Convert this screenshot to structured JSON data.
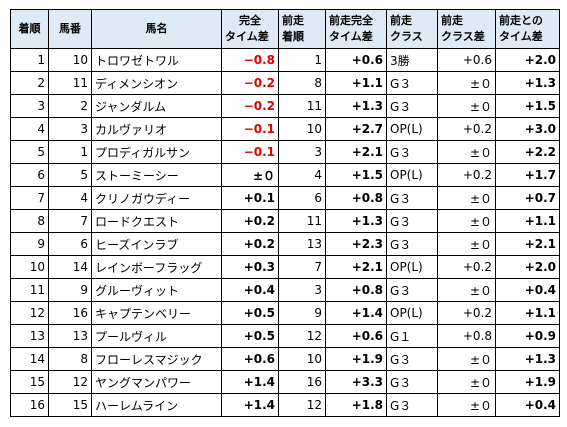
{
  "headers": {
    "rank": [
      "着順"
    ],
    "num": [
      "馬番"
    ],
    "name": [
      "馬名"
    ],
    "full_time_diff": [
      "完全",
      "タイム差"
    ],
    "prev_rank": [
      "前走",
      "着順"
    ],
    "prev_full_time_diff": [
      "前走完全",
      "タイム差"
    ],
    "prev_class": [
      "前走",
      "クラス"
    ],
    "class_diff": [
      "前走",
      "クラス差"
    ],
    "time_diff_vs_prev": [
      "前走との",
      "タイム差"
    ]
  },
  "rows": [
    {
      "rank": "1",
      "num": "10",
      "name": "トロワゼトワル",
      "full": "−0.8",
      "full_neg": true,
      "prev_rank": "1",
      "prev_full": "+0.6",
      "prev_class": "3勝",
      "class_diff": "+0.6",
      "vs_prev": "+2.0"
    },
    {
      "rank": "2",
      "num": "11",
      "name": "ディメンシオン",
      "full": "−0.2",
      "full_neg": true,
      "prev_rank": "8",
      "prev_full": "+1.1",
      "prev_class": "G３",
      "class_diff": "±０",
      "vs_prev": "+1.3"
    },
    {
      "rank": "3",
      "num": "2",
      "name": "ジャンダルム",
      "full": "−0.2",
      "full_neg": true,
      "prev_rank": "11",
      "prev_full": "+1.3",
      "prev_class": "G３",
      "class_diff": "±０",
      "vs_prev": "+1.5"
    },
    {
      "rank": "4",
      "num": "3",
      "name": "カルヴァリオ",
      "full": "−0.1",
      "full_neg": true,
      "prev_rank": "10",
      "prev_full": "+2.7",
      "prev_class": "OP(L)",
      "class_diff": "+0.2",
      "vs_prev": "+3.0"
    },
    {
      "rank": "5",
      "num": "1",
      "name": "プロディガルサン",
      "full": "−0.1",
      "full_neg": true,
      "prev_rank": "3",
      "prev_full": "+2.1",
      "prev_class": "G３",
      "class_diff": "±０",
      "vs_prev": "+2.2"
    },
    {
      "rank": "6",
      "num": "5",
      "name": "ストーミーシー",
      "full": "±０",
      "full_neg": false,
      "prev_rank": "4",
      "prev_full": "+1.5",
      "prev_class": "OP(L)",
      "class_diff": "+0.2",
      "vs_prev": "+1.7"
    },
    {
      "rank": "7",
      "num": "4",
      "name": "クリノガウディー",
      "full": "+0.1",
      "full_neg": false,
      "prev_rank": "6",
      "prev_full": "+0.8",
      "prev_class": "G３",
      "class_diff": "±０",
      "vs_prev": "+0.7"
    },
    {
      "rank": "8",
      "num": "7",
      "name": "ロードクエスト",
      "full": "+0.2",
      "full_neg": false,
      "prev_rank": "11",
      "prev_full": "+1.3",
      "prev_class": "G３",
      "class_diff": "±０",
      "vs_prev": "+1.1"
    },
    {
      "rank": "9",
      "num": "6",
      "name": "ヒーズインラブ",
      "full": "+0.2",
      "full_neg": false,
      "prev_rank": "13",
      "prev_full": "+2.3",
      "prev_class": "G３",
      "class_diff": "±０",
      "vs_prev": "+2.1"
    },
    {
      "rank": "10",
      "num": "14",
      "name": "レインボーフラッグ",
      "full": "+0.3",
      "full_neg": false,
      "prev_rank": "7",
      "prev_full": "+2.1",
      "prev_class": "OP(L)",
      "class_diff": "+0.2",
      "vs_prev": "+2.0"
    },
    {
      "rank": "11",
      "num": "9",
      "name": "グルーヴィット",
      "full": "+0.4",
      "full_neg": false,
      "prev_rank": "3",
      "prev_full": "+0.8",
      "prev_class": "G３",
      "class_diff": "±０",
      "vs_prev": "+0.4"
    },
    {
      "rank": "12",
      "num": "16",
      "name": "キャプテンベリー",
      "full": "+0.5",
      "full_neg": false,
      "prev_rank": "9",
      "prev_full": "+1.4",
      "prev_class": "OP(L)",
      "class_diff": "+0.2",
      "vs_prev": "+1.1"
    },
    {
      "rank": "13",
      "num": "13",
      "name": "プールヴィル",
      "full": "+0.5",
      "full_neg": false,
      "prev_rank": "12",
      "prev_full": "+0.6",
      "prev_class": "G１",
      "class_diff": "+0.8",
      "vs_prev": "+0.9"
    },
    {
      "rank": "14",
      "num": "8",
      "name": "フローレスマジック",
      "full": "+0.6",
      "full_neg": false,
      "prev_rank": "10",
      "prev_full": "+1.9",
      "prev_class": "G３",
      "class_diff": "±０",
      "vs_prev": "+1.3"
    },
    {
      "rank": "15",
      "num": "12",
      "name": "ヤングマンパワー",
      "full": "+1.4",
      "full_neg": false,
      "prev_rank": "16",
      "prev_full": "+3.3",
      "prev_class": "G３",
      "class_diff": "±０",
      "vs_prev": "+1.9"
    },
    {
      "rank": "16",
      "num": "15",
      "name": "ハーレムライン",
      "full": "+1.4",
      "full_neg": false,
      "prev_rank": "12",
      "prev_full": "+1.8",
      "prev_class": "G３",
      "class_diff": "±０",
      "vs_prev": "+0.4"
    }
  ]
}
